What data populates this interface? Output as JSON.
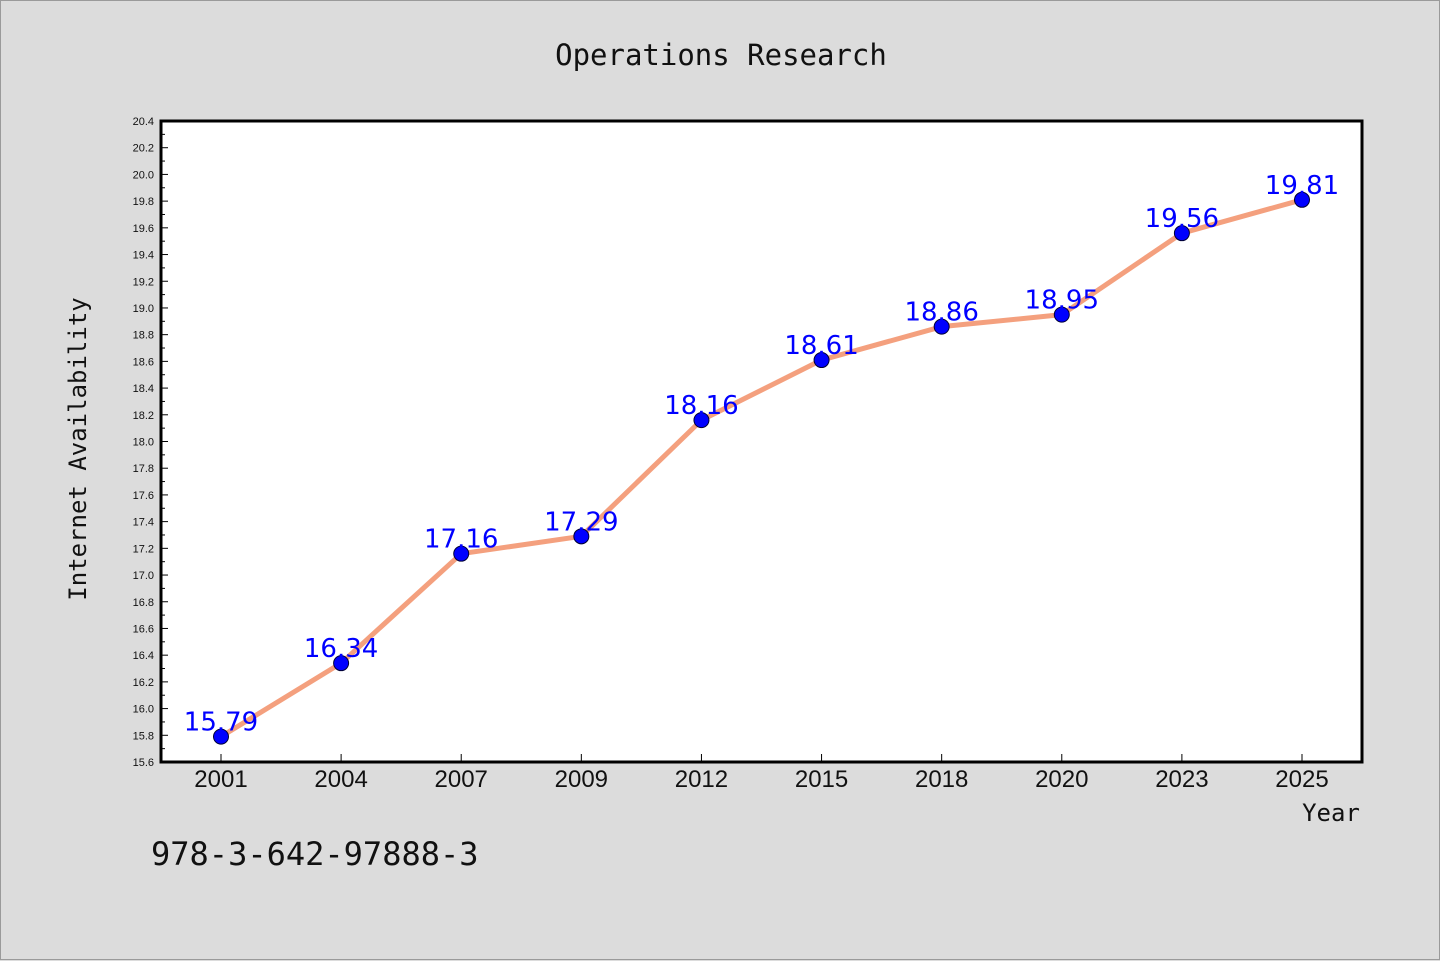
{
  "chart_data": {
    "type": "line",
    "title": "Operations Research",
    "xlabel": "Year",
    "ylabel": "Internet Availability",
    "categories": [
      "2001",
      "2004",
      "2007",
      "2009",
      "2012",
      "2015",
      "2018",
      "2020",
      "2023",
      "2025"
    ],
    "values": [
      15.79,
      16.34,
      17.16,
      17.29,
      18.16,
      18.61,
      18.86,
      18.95,
      19.56,
      19.81
    ],
    "data_labels": [
      "15.79",
      "16.34",
      "17.16",
      "17.29",
      "18.16",
      "18.61",
      "18.86",
      "18.95",
      "19.56",
      "19.81"
    ],
    "ylim": [
      15.6,
      20.4
    ],
    "yticks": [
      "15.6",
      "15.8",
      "16.0",
      "16.2",
      "16.4",
      "16.6",
      "16.8",
      "17.0",
      "17.2",
      "17.4",
      "17.6",
      "17.8",
      "18.0",
      "18.2",
      "18.4",
      "18.6",
      "18.8",
      "19.0",
      "19.2",
      "19.4",
      "19.6",
      "19.8",
      "20.0",
      "20.2",
      "20.4"
    ],
    "grid": false,
    "line_color": "#f4a07e",
    "marker_color": "#0000ff"
  },
  "footer": "978-3-642-97888-3"
}
